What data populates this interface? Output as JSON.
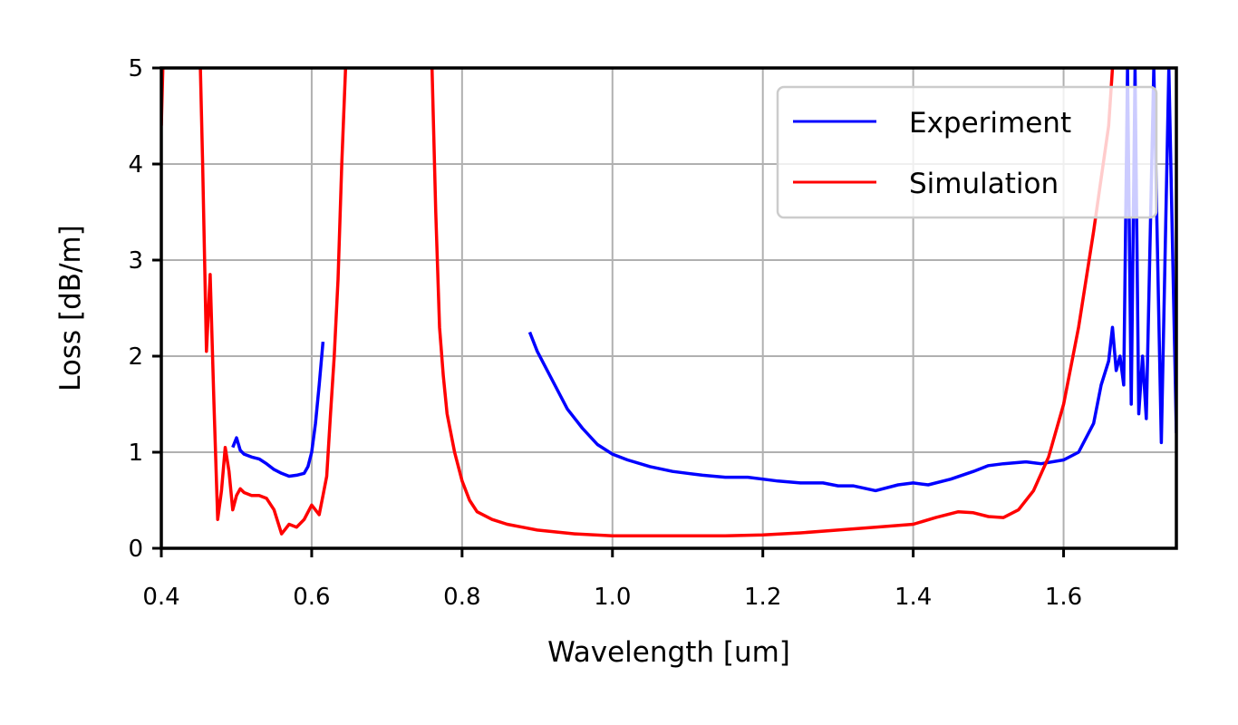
{
  "chart_data": {
    "type": "line",
    "title": "",
    "xlabel": "Wavelength [um]",
    "ylabel": "Loss [dB/m]",
    "xlim": [
      0.4,
      1.75
    ],
    "ylim": [
      0,
      5
    ],
    "xticks": [
      "0.4",
      "0.6",
      "0.8",
      "1.0",
      "1.2",
      "1.4",
      "1.6"
    ],
    "yticks": [
      "0",
      "1",
      "2",
      "3",
      "4",
      "5"
    ],
    "grid": true,
    "legend_position": "upper right",
    "series": [
      {
        "name": "Experiment",
        "color": "#0000ff",
        "segments": [
          {
            "x": [
              0.495,
              0.5,
              0.505,
              0.51,
              0.52,
              0.53,
              0.54,
              0.55,
              0.56,
              0.57,
              0.58,
              0.59,
              0.595,
              0.6,
              0.605,
              0.61,
              0.615
            ],
            "y": [
              1.05,
              1.15,
              1.02,
              0.98,
              0.95,
              0.93,
              0.88,
              0.82,
              0.78,
              0.75,
              0.76,
              0.78,
              0.85,
              1.0,
              1.3,
              1.7,
              2.15
            ]
          },
          {
            "x": [
              0.89,
              0.9,
              0.92,
              0.94,
              0.96,
              0.98,
              1.0,
              1.02,
              1.05,
              1.08,
              1.1,
              1.12,
              1.15,
              1.18,
              1.2,
              1.22,
              1.25,
              1.28,
              1.3,
              1.32,
              1.35,
              1.38,
              1.4,
              1.42,
              1.45,
              1.48,
              1.5,
              1.52,
              1.55,
              1.57,
              1.6,
              1.62,
              1.64,
              1.65,
              1.66,
              1.665,
              1.67,
              1.675,
              1.68,
              1.685,
              1.69,
              1.695,
              1.7,
              1.705,
              1.71,
              1.72,
              1.73,
              1.74,
              1.75
            ],
            "y": [
              2.25,
              2.05,
              1.75,
              1.45,
              1.25,
              1.08,
              0.98,
              0.92,
              0.85,
              0.8,
              0.78,
              0.76,
              0.74,
              0.74,
              0.72,
              0.7,
              0.68,
              0.68,
              0.65,
              0.65,
              0.6,
              0.66,
              0.68,
              0.66,
              0.72,
              0.8,
              0.86,
              0.88,
              0.9,
              0.88,
              0.92,
              1.0,
              1.3,
              1.7,
              1.95,
              2.3,
              1.85,
              2.0,
              1.7,
              5.0,
              1.5,
              5.0,
              1.4,
              2.0,
              1.35,
              5.0,
              1.1,
              5.0,
              1.2
            ]
          }
        ]
      },
      {
        "name": "Simulation",
        "color": "#ff0000",
        "segments": [
          {
            "x": [
              0.4,
              0.402,
              0.404
            ],
            "y": [
              4.4,
              5.0,
              5.0
            ]
          },
          {
            "x": [
              0.452,
              0.455,
              0.46,
              0.465,
              0.47,
              0.475,
              0.48,
              0.485,
              0.49,
              0.495,
              0.5,
              0.505,
              0.51,
              0.52,
              0.53,
              0.54,
              0.55,
              0.56,
              0.565,
              0.57,
              0.58,
              0.59,
              0.6,
              0.61,
              0.615,
              0.62,
              0.625,
              0.63,
              0.635,
              0.64,
              0.645
            ],
            "y": [
              5.0,
              4.0,
              2.05,
              2.85,
              1.5,
              0.3,
              0.6,
              1.05,
              0.8,
              0.4,
              0.55,
              0.62,
              0.58,
              0.55,
              0.55,
              0.52,
              0.4,
              0.15,
              0.2,
              0.25,
              0.22,
              0.3,
              0.45,
              0.35,
              0.55,
              0.75,
              1.4,
              2.0,
              2.8,
              4.0,
              5.0
            ]
          },
          {
            "x": [
              0.76,
              0.765,
              0.77,
              0.775,
              0.78,
              0.79,
              0.8,
              0.81,
              0.82,
              0.84,
              0.86,
              0.88,
              0.9,
              0.95,
              1.0,
              1.05,
              1.1,
              1.15,
              1.2,
              1.25,
              1.3,
              1.35,
              1.4,
              1.43,
              1.46,
              1.48,
              1.5,
              1.52,
              1.54,
              1.56,
              1.58,
              1.6,
              1.62,
              1.64,
              1.66,
              1.665
            ],
            "y": [
              5.0,
              3.5,
              2.3,
              1.8,
              1.4,
              1.0,
              0.7,
              0.5,
              0.38,
              0.3,
              0.25,
              0.22,
              0.19,
              0.15,
              0.13,
              0.13,
              0.13,
              0.13,
              0.14,
              0.16,
              0.19,
              0.22,
              0.25,
              0.32,
              0.38,
              0.37,
              0.33,
              0.32,
              0.4,
              0.6,
              0.95,
              1.5,
              2.3,
              3.3,
              4.4,
              5.0
            ]
          }
        ]
      }
    ]
  },
  "legend": {
    "items": [
      {
        "label": "Experiment",
        "color": "#0000ff"
      },
      {
        "label": "Simulation",
        "color": "#ff0000"
      }
    ]
  }
}
